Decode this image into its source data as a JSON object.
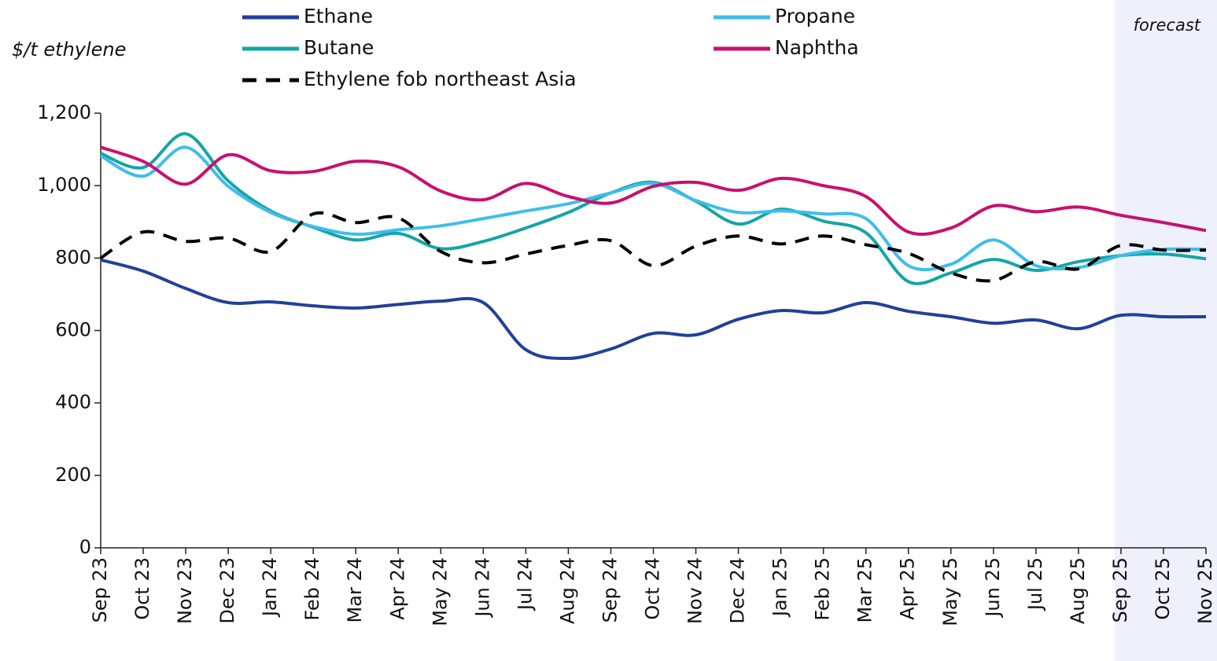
{
  "chart_data": {
    "type": "line",
    "y_label": "$/t ethylene",
    "annotation": {
      "text": "forecast",
      "from": "Sep 25"
    },
    "categories": [
      "Sep 23",
      "Oct 23",
      "Nov 23",
      "Dec 23",
      "Jan 24",
      "Feb 24",
      "Mar 24",
      "Apr 24",
      "May 24",
      "Jun 24",
      "Jul 24",
      "Aug 24",
      "Sep 24",
      "Oct 24",
      "Nov 24",
      "Dec 24",
      "Jan 25",
      "Feb 25",
      "Mar 25",
      "Apr 25",
      "May 25",
      "Jun 25",
      "Jul 25",
      "Aug 25",
      "Sep 25",
      "Oct 25",
      "Nov 25"
    ],
    "series": [
      {
        "name": "Ethane",
        "color": "#21409a",
        "dash": false,
        "values": [
          795,
          764,
          716,
          677,
          679,
          668,
          662,
          672,
          681,
          677,
          547,
          523,
          549,
          592,
          588,
          631,
          655,
          649,
          677,
          653,
          638,
          620,
          629,
          605,
          642,
          638,
          638
        ]
      },
      {
        "name": "Propane",
        "color": "#3fbdea",
        "dash": false,
        "values": [
          1082,
          1026,
          1106,
          998,
          926,
          887,
          866,
          878,
          889,
          909,
          930,
          950,
          980,
          1006,
          959,
          926,
          930,
          922,
          909,
          779,
          783,
          850,
          779,
          774,
          807,
          824,
          824
        ]
      },
      {
        "name": "Butane",
        "color": "#15a5a5",
        "dash": false,
        "values": [
          1089,
          1050,
          1143,
          1013,
          930,
          885,
          850,
          868,
          826,
          846,
          883,
          926,
          980,
          1009,
          957,
          894,
          935,
          902,
          870,
          735,
          759,
          796,
          766,
          790,
          807,
          811,
          798
        ]
      },
      {
        "name": "Naphtha",
        "color": "#c8106e",
        "dash": false,
        "values": [
          1106,
          1067,
          1004,
          1085,
          1041,
          1039,
          1067,
          1052,
          985,
          961,
          1006,
          970,
          952,
          998,
          1009,
          987,
          1020,
          1000,
          970,
          872,
          883,
          944,
          928,
          941,
          918,
          898,
          876
        ]
      },
      {
        "name": "Ethylene fob northeast Asia",
        "color": "#000000",
        "dash": true,
        "values": [
          800,
          872,
          846,
          855,
          818,
          922,
          898,
          911,
          818,
          787,
          811,
          835,
          848,
          779,
          833,
          861,
          839,
          861,
          837,
          813,
          759,
          738,
          790,
          770,
          835,
          822,
          822
        ]
      }
    ],
    "ylim": [
      0,
      1200
    ],
    "yticks": [
      0,
      200,
      400,
      600,
      800,
      {
        "value": 1000,
        "label": "1,000"
      },
      {
        "value": 1200,
        "label": "1,200"
      }
    ]
  }
}
